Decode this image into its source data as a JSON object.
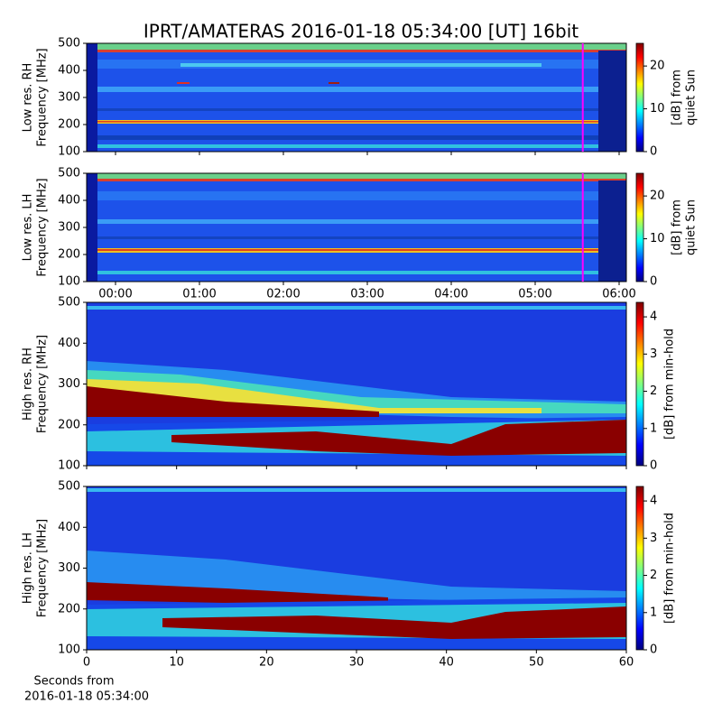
{
  "title": "IPRT/AMATERAS 2016-01-18 05:34:00 [UT]   16bit",
  "chart_data": [
    {
      "type": "spectrogram",
      "ylabel": [
        "Low res. RH",
        "Frequency [MHz]"
      ],
      "ylim": [
        100,
        500
      ],
      "yticks": [
        100,
        200,
        300,
        400,
        500
      ],
      "xlim": [
        -0.344,
        6.086
      ],
      "xticks": [
        {
          "value": 0,
          "label": "00:00"
        },
        {
          "value": 1,
          "label": "01:00"
        },
        {
          "value": 2,
          "label": "02:00"
        },
        {
          "value": 3,
          "label": "03:00"
        },
        {
          "value": 4,
          "label": "04:00"
        },
        {
          "value": 5,
          "label": "05:00"
        },
        {
          "value": 6,
          "label": "06:00"
        }
      ],
      "show_xtick_labels": false,
      "marker": {
        "x": 5.567,
        "color": "#ff00ff"
      },
      "colormap": "jet",
      "clim": [
        0,
        25.3
      ],
      "cticks": [
        0,
        10,
        20
      ],
      "clabel": [
        "[dB] from",
        "quiet Sun"
      ]
    },
    {
      "type": "spectrogram",
      "ylabel": [
        "Low res. LH",
        "Frequency [MHz]"
      ],
      "ylim": [
        100,
        500
      ],
      "yticks": [
        100,
        200,
        300,
        400,
        500
      ],
      "xlim": [
        -0.344,
        6.086
      ],
      "xticks": [
        {
          "value": 0,
          "label": "00:00"
        },
        {
          "value": 1,
          "label": "01:00"
        },
        {
          "value": 2,
          "label": "02:00"
        },
        {
          "value": 3,
          "label": "03:00"
        },
        {
          "value": 4,
          "label": "04:00"
        },
        {
          "value": 5,
          "label": "05:00"
        },
        {
          "value": 6,
          "label": "06:00"
        }
      ],
      "show_xtick_labels": true,
      "marker": {
        "x": 5.567,
        "color": "#ff00ff"
      },
      "colormap": "jet",
      "clim": [
        0,
        25.3
      ],
      "cticks": [
        0,
        10,
        20
      ],
      "clabel": [
        "[dB] from",
        "quiet Sun"
      ]
    },
    {
      "type": "spectrogram",
      "ylabel": [
        "High res. RH",
        "Frequency [MHz]"
      ],
      "ylim": [
        100,
        500
      ],
      "yticks": [
        100,
        200,
        300,
        400,
        500
      ],
      "xlim": [
        0,
        60
      ],
      "xticks": [
        0,
        10,
        20,
        30,
        40,
        50,
        60
      ],
      "show_xtick_labels": false,
      "colormap": "jet",
      "clim": [
        0,
        4.39
      ],
      "cticks": [
        0,
        1,
        2,
        3,
        4
      ],
      "clabel": [
        "[dB] from min-hold"
      ]
    },
    {
      "type": "spectrogram",
      "ylabel": [
        "High res. LH",
        "Frequency [MHz]"
      ],
      "ylim": [
        100,
        500
      ],
      "yticks": [
        100,
        200,
        300,
        400,
        500
      ],
      "xlim": [
        0,
        60
      ],
      "xticks": [
        0,
        10,
        20,
        30,
        40,
        50,
        60
      ],
      "show_xtick_labels": true,
      "xlabel": [
        "Seconds from",
        "2016-01-18 05:34:00"
      ],
      "colormap": "jet",
      "clim": [
        0,
        4.39
      ],
      "cticks": [
        0,
        1,
        2,
        3,
        4
      ],
      "clabel": [
        "[dB] from min-hold"
      ]
    }
  ]
}
